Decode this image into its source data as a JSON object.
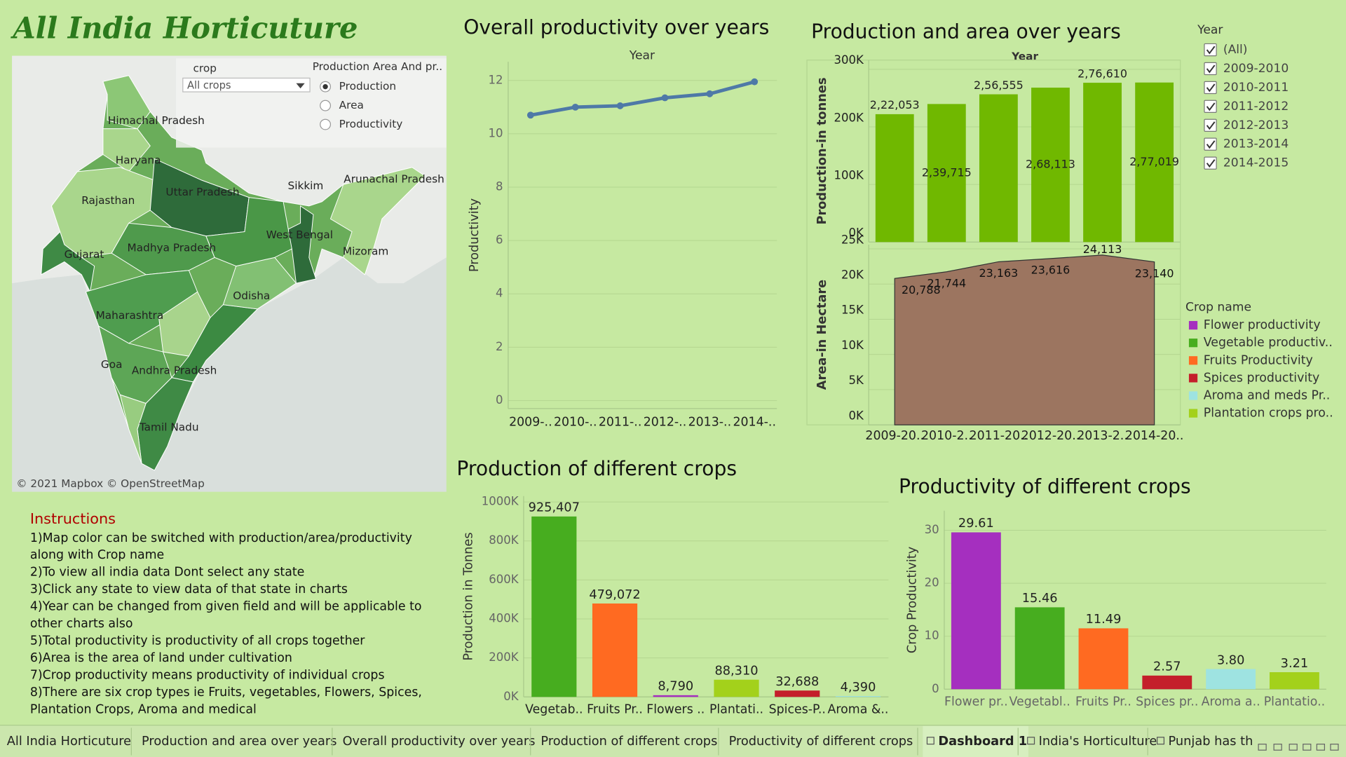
{
  "title": "All India Horticuture",
  "map": {
    "crop_label": "crop",
    "crop_value": "All crops",
    "measure_label": "Production Area And pr..",
    "measure_options": [
      "Production",
      "Area",
      "Productivity"
    ],
    "measure_selected_index": 0,
    "state_labels": [
      "Himachal Pradesh",
      "Haryana",
      "Uttar Pradesh",
      "Rajasthan",
      "Sikkim",
      "Arunachal Pradesh",
      "West Bengal",
      "Madhya Pradesh",
      "Gujarat",
      "Mizoram",
      "Odisha",
      "Maharashtra",
      "Goa",
      "Andhra Pradesh",
      "Tamil Nadu"
    ],
    "attribution": "© 2021 Mapbox © OpenStreetMap"
  },
  "year_filter": {
    "title": "Year",
    "items": [
      "(All)",
      "2009-2010",
      "2010-2011",
      "2011-2012",
      "2012-2013",
      "2013-2014",
      "2014-2015"
    ]
  },
  "instructions": {
    "title": "Instructions",
    "lines": [
      "1)Map color can be switched with production/area/productivity",
      "along with Crop name",
      "2)To view all india data Dont select any state",
      "3)Click any state to view data of that state in charts",
      "4)Year can be changed from given field and will be applicable to",
      "other charts also",
      "5)Total productivity is productivity of all crops together",
      "6)Area is the area of land under cultivation",
      "7)Crop productivity means productivity of individual crops",
      "8)There are six crop types ie Fruits, vegetables, Flowers, Spices,",
      "Plantation Crops, Aroma and medical"
    ]
  },
  "tabs": [
    "All India Horticuture",
    "Production and area over years",
    "Overall productivity over years",
    "Production of different crops",
    "Productivity of different crops",
    "Dashboard 1",
    "India's Horticulture",
    "Punjab has th"
  ],
  "active_tab": 5,
  "chart_data": [
    {
      "type": "line",
      "title": "Overall productivity over years",
      "x_header": "Year",
      "y_label": "Productivity",
      "categories": [
        "2009-..",
        "2010-..",
        "2011-..",
        "2012-..",
        "2013-..",
        "2014-.."
      ],
      "values": [
        10.7,
        11.0,
        11.05,
        11.35,
        11.5,
        11.95
      ],
      "color": "#4e79a7",
      "ylim": [
        -0.3,
        12.7
      ],
      "yticks": [
        0,
        2,
        4,
        6,
        8,
        10,
        12
      ],
      "grid": true
    },
    {
      "type": "panels",
      "title": "Production and area over years",
      "x_header": "Year",
      "categories": [
        "2009-20..",
        "2010-2..",
        "2011-20..",
        "2012-20..",
        "2013-2..",
        "2014-20.."
      ],
      "panels": [
        {
          "type": "bar",
          "y_label": "Production-in tonnes",
          "values": [
            222053,
            239715,
            256555,
            268113,
            276610,
            277019
          ],
          "value_labels": [
            "2,22,053",
            "2,39,715",
            "2,56,555",
            "2,68,113",
            "2,76,610",
            "2,77,019"
          ],
          "color": "#70b800",
          "ylim": [
            0,
            316000
          ],
          "yticks": [
            {
              "value": 0,
              "label": "0K"
            },
            {
              "value": 100000,
              "label": "100K"
            },
            {
              "value": 200000,
              "label": "200K"
            },
            {
              "value": 300000,
              "label": "300K"
            }
          ],
          "grid": true
        },
        {
          "type": "area",
          "y_label": "Area-in Hectare",
          "values": [
            20788,
            21744,
            23163,
            23616,
            24113,
            23140
          ],
          "value_labels": [
            "20,788",
            "21,744",
            "23,163",
            "23,616",
            "24,113",
            "23,140"
          ],
          "color": "#9c7560",
          "ylim": [
            0,
            25600
          ],
          "yticks": [
            {
              "value": 0,
              "label": "0K"
            },
            {
              "value": 5000,
              "label": "5K"
            },
            {
              "value": 10000,
              "label": "10K"
            },
            {
              "value": 15000,
              "label": "15K"
            },
            {
              "value": 20000,
              "label": "20K"
            },
            {
              "value": 25000,
              "label": "25K"
            }
          ],
          "grid": true
        }
      ]
    },
    {
      "type": "bar",
      "title": "Production of different crops",
      "y_label": "Production in Tonnes",
      "categories": [
        "Vegetab..",
        "Fruits Pr..",
        "Flowers ..",
        "Plantati..",
        "Spices-P..",
        "Aroma &.."
      ],
      "values": [
        925407,
        479072,
        8790,
        88310,
        32688,
        4390
      ],
      "value_labels": [
        "925,407",
        "479,072",
        "8,790",
        "88,310",
        "32,688",
        "4,390"
      ],
      "colors": [
        "#47ad1f",
        "#ff6a21",
        "#a52fbf",
        "#a3d11b",
        "#c41f2b",
        "#9ee3e1"
      ],
      "ylim": [
        0,
        1030000
      ],
      "yticks": [
        {
          "value": 0,
          "label": "0K"
        },
        {
          "value": 200000,
          "label": "200K"
        },
        {
          "value": 400000,
          "label": "400K"
        },
        {
          "value": 600000,
          "label": "600K"
        },
        {
          "value": 800000,
          "label": "800K"
        },
        {
          "value": 1000000,
          "label": "1000K"
        }
      ],
      "grid": true
    },
    {
      "type": "bar",
      "title": "Productivity of different crops",
      "y_label": "Crop Productivity",
      "categories": [
        "Flower pr..",
        "Vegetabl..",
        "Fruits Pr..",
        "Spices pr..",
        "Aroma a..",
        "Plantatio.."
      ],
      "values": [
        29.61,
        15.46,
        11.49,
        2.57,
        3.8,
        3.21
      ],
      "value_labels": [
        "29.61",
        "15.46",
        "11.49",
        "2.57",
        "3.80",
        "3.21"
      ],
      "colors": [
        "#a52fbf",
        "#47ad1f",
        "#ff6a21",
        "#c41f2b",
        "#9ee3e1",
        "#a3d11b"
      ],
      "ylim": [
        0,
        33.7
      ],
      "yticks": [
        0,
        10,
        20,
        30
      ],
      "grid": true,
      "legend": {
        "title": "Crop name",
        "entries": [
          "Flower productivity",
          "Vegetable productiv..",
          "Fruits Productivity",
          "Spices productivity",
          "Aroma and meds Pr..",
          "Plantation crops pro.."
        ]
      }
    }
  ]
}
